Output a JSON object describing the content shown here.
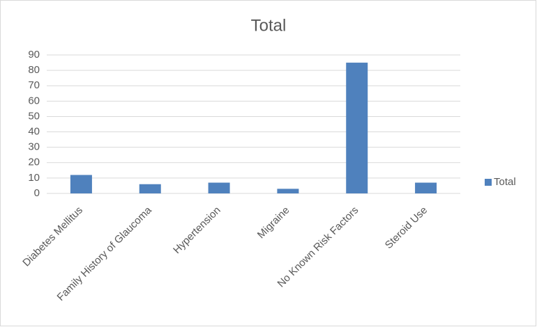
{
  "chart_data": {
    "type": "bar",
    "title": "Total",
    "categories": [
      "Diabetes Mellitus",
      "Family History of Glaucoma",
      "Hypertension",
      "Migraine",
      "No Known Risk Factors",
      "Steroid Use"
    ],
    "series": [
      {
        "name": "Total",
        "color": "#4f81bd",
        "values": [
          12,
          6,
          7,
          3,
          85,
          7
        ]
      }
    ],
    "ylim": [
      0,
      90
    ],
    "yticks": [
      0,
      10,
      20,
      30,
      40,
      50,
      60,
      70,
      80,
      90
    ],
    "grid": true,
    "legend": "right"
  }
}
